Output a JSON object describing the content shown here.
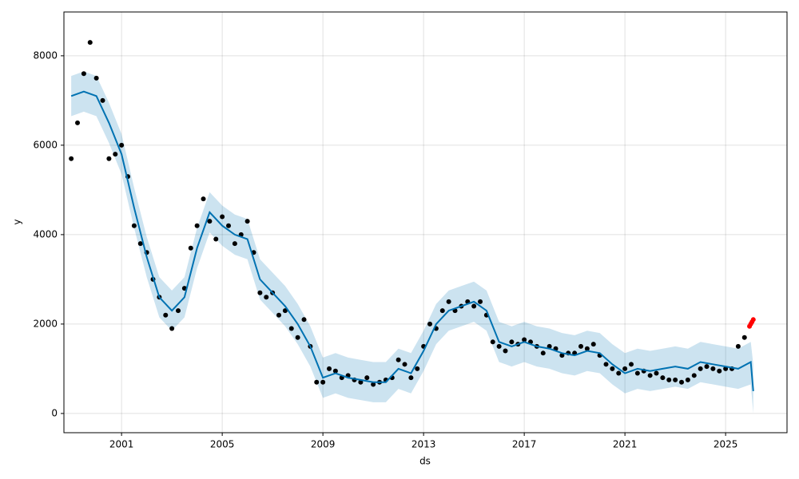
{
  "chart_data": {
    "type": "line",
    "xlabel": "ds",
    "ylabel": "y",
    "xlim": [
      1998.71,
      2027.44
    ],
    "ylim": [
      -430,
      8980
    ],
    "xticks": [
      2001,
      2005,
      2009,
      2013,
      2017,
      2021,
      2025
    ],
    "yticks": [
      0,
      2000,
      4000,
      6000,
      8000
    ],
    "grid": true,
    "observed": {
      "color": "#000000",
      "x": [
        1999.0,
        1999.25,
        1999.5,
        1999.75,
        2000.0,
        2000.25,
        2000.5,
        2000.75,
        2001.0,
        2001.25,
        2001.5,
        2001.75,
        2002.0,
        2002.25,
        2002.5,
        2002.75,
        2003.0,
        2003.25,
        2003.5,
        2003.75,
        2004.0,
        2004.25,
        2004.5,
        2004.75,
        2005.0,
        2005.25,
        2005.5,
        2005.75,
        2006.0,
        2006.25,
        2006.5,
        2006.75,
        2007.0,
        2007.25,
        2007.5,
        2007.75,
        2008.0,
        2008.25,
        2008.5,
        2008.75,
        2009.0,
        2009.25,
        2009.5,
        2009.75,
        2010.0,
        2010.25,
        2010.5,
        2010.75,
        2011.0,
        2011.25,
        2011.5,
        2011.75,
        2012.0,
        2012.25,
        2012.5,
        2012.75,
        2013.0,
        2013.25,
        2013.5,
        2013.75,
        2014.0,
        2014.25,
        2014.5,
        2014.75,
        2015.0,
        2015.25,
        2015.5,
        2015.75,
        2016.0,
        2016.25,
        2016.5,
        2016.75,
        2017.0,
        2017.25,
        2017.5,
        2017.75,
        2018.0,
        2018.25,
        2018.5,
        2018.75,
        2019.0,
        2019.25,
        2019.5,
        2019.75,
        2020.0,
        2020.25,
        2020.5,
        2020.75,
        2021.0,
        2021.25,
        2021.5,
        2021.75,
        2022.0,
        2022.25,
        2022.5,
        2022.75,
        2023.0,
        2023.25,
        2023.5,
        2023.75,
        2024.0,
        2024.25,
        2024.5,
        2024.75,
        2025.0,
        2025.25,
        2025.5,
        2025.75
      ],
      "values": [
        5700,
        6500,
        7600,
        8300,
        7500,
        7000,
        5700,
        5800,
        6000,
        5300,
        4200,
        3800,
        3600,
        3000,
        2600,
        2200,
        1900,
        2300,
        2800,
        3700,
        4200,
        4800,
        4300,
        3900,
        4400,
        4200,
        3800,
        4000,
        4300,
        3600,
        2700,
        2600,
        2700,
        2200,
        2300,
        1900,
        1700,
        2100,
        1500,
        700,
        700,
        1000,
        950,
        800,
        850,
        750,
        700,
        800,
        650,
        700,
        750,
        800,
        1200,
        1100,
        800,
        1000,
        1500,
        2000,
        1900,
        2300,
        2500,
        2300,
        2400,
        2500,
        2400,
        2500,
        2200,
        1600,
        1500,
        1400,
        1600,
        1550,
        1650,
        1600,
        1500,
        1350,
        1500,
        1450,
        1300,
        1350,
        1350,
        1500,
        1450,
        1550,
        1300,
        1100,
        1000,
        900,
        1000,
        1100,
        900,
        950,
        850,
        900,
        800,
        750,
        750,
        700,
        750,
        850,
        1000,
        1050,
        1000,
        950,
        1000,
        1000,
        1500,
        1700
      ]
    },
    "recent": {
      "color": "#ff0000",
      "x": [
        2025.95,
        2026.0,
        2026.05,
        2026.1
      ],
      "values": [
        1950,
        2000,
        2050,
        2100
      ]
    },
    "yhat": {
      "color": "#0072b2",
      "x": [
        1999.0,
        1999.5,
        2000.0,
        2000.5,
        2001.0,
        2001.5,
        2002.0,
        2002.5,
        2003.0,
        2003.5,
        2004.0,
        2004.5,
        2005.0,
        2005.5,
        2006.0,
        2006.5,
        2007.0,
        2007.5,
        2008.0,
        2008.5,
        2009.0,
        2009.5,
        2010.0,
        2010.5,
        2011.0,
        2011.5,
        2012.0,
        2012.5,
        2013.0,
        2013.5,
        2014.0,
        2014.5,
        2015.0,
        2015.5,
        2016.0,
        2016.5,
        2017.0,
        2017.5,
        2018.0,
        2018.5,
        2019.0,
        2019.5,
        2020.0,
        2020.5,
        2021.0,
        2021.5,
        2022.0,
        2022.5,
        2023.0,
        2023.5,
        2024.0,
        2024.5,
        2025.0,
        2025.5,
        2026.0,
        2026.1
      ],
      "values": [
        7100,
        7200,
        7100,
        6500,
        5800,
        4600,
        3500,
        2600,
        2300,
        2600,
        3700,
        4500,
        4200,
        4000,
        3900,
        3000,
        2700,
        2400,
        2000,
        1500,
        800,
        900,
        800,
        750,
        700,
        700,
        1000,
        900,
        1400,
        2000,
        2300,
        2400,
        2500,
        2300,
        1600,
        1500,
        1600,
        1500,
        1450,
        1350,
        1300,
        1400,
        1350,
        1100,
        900,
        1000,
        950,
        1000,
        1050,
        1000,
        1150,
        1100,
        1050,
        1000,
        1150,
        500
      ]
    },
    "band": {
      "color": "#0072b2",
      "x": [
        1999.0,
        1999.5,
        2000.0,
        2000.5,
        2001.0,
        2001.5,
        2002.0,
        2002.5,
        2003.0,
        2003.5,
        2004.0,
        2004.5,
        2005.0,
        2005.5,
        2006.0,
        2006.5,
        2007.0,
        2007.5,
        2008.0,
        2008.5,
        2009.0,
        2009.5,
        2010.0,
        2010.5,
        2011.0,
        2011.5,
        2012.0,
        2012.5,
        2013.0,
        2013.5,
        2014.0,
        2014.5,
        2015.0,
        2015.5,
        2016.0,
        2016.5,
        2017.0,
        2017.5,
        2018.0,
        2018.5,
        2019.0,
        2019.5,
        2020.0,
        2020.5,
        2021.0,
        2021.5,
        2022.0,
        2022.5,
        2023.0,
        2023.5,
        2024.0,
        2024.5,
        2025.0,
        2025.5,
        2026.0,
        2026.1
      ],
      "lower": [
        6650,
        6750,
        6650,
        6050,
        5350,
        4150,
        3050,
        2150,
        1850,
        2150,
        3250,
        4050,
        3750,
        3550,
        3450,
        2550,
        2250,
        1950,
        1550,
        1050,
        350,
        450,
        350,
        300,
        250,
        250,
        550,
        450,
        950,
        1550,
        1850,
        1950,
        2050,
        1850,
        1150,
        1050,
        1150,
        1050,
        1000,
        900,
        850,
        950,
        900,
        650,
        450,
        550,
        500,
        550,
        600,
        550,
        700,
        650,
        600,
        550,
        650,
        0
      ],
      "upper": [
        7550,
        7650,
        7550,
        6950,
        6250,
        5050,
        3950,
        3050,
        2750,
        3050,
        4150,
        4950,
        4650,
        4450,
        4350,
        3450,
        3150,
        2850,
        2450,
        1950,
        1250,
        1350,
        1250,
        1200,
        1150,
        1150,
        1450,
        1350,
        1850,
        2450,
        2750,
        2850,
        2950,
        2750,
        2050,
        1950,
        2050,
        1950,
        1900,
        1800,
        1750,
        1850,
        1800,
        1550,
        1350,
        1450,
        1400,
        1450,
        1500,
        1450,
        1600,
        1550,
        1500,
        1450,
        1600,
        1100
      ]
    }
  }
}
